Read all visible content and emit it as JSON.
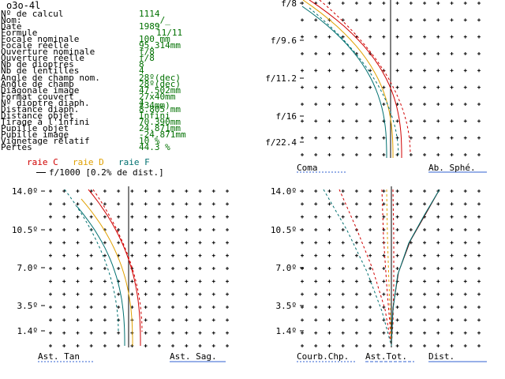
{
  "title": "o3o-4l",
  "info": [
    {
      "label": "Nº de calcul",
      "value": "1114"
    },
    {
      "label": "Nom:",
      "value": "_/_"
    },
    {
      "label": "Date",
      "value": "1989"
    },
    {
      "label": "Formule",
      "value": "11/11"
    },
    {
      "label": "Focale nominale",
      "value": "100      mm"
    },
    {
      "label": "Focale réelle",
      "value": "95.314mm"
    },
    {
      "label": "Ouverture nominale",
      "value": "f/8"
    },
    {
      "label": "Ouverture réelle",
      "value": "f/8"
    },
    {
      "label": "Nb de dioptres",
      "value": "8"
    },
    {
      "label": "Nb de lentilles",
      "value": "4"
    },
    {
      "label": "Angle de champ nom.",
      "value": "28º(dec)"
    },
    {
      "label": "Angle de champ",
      "value": "28º(dec)"
    },
    {
      "label": "Diagonale image",
      "value": "47.502mm"
    },
    {
      "label": "Format couvert",
      "value": "27x40mm (34mm)"
    },
    {
      "label": "Nº dioptre diaph.",
      "value": "4"
    },
    {
      "label": "Distance diaph.",
      "value": "8.805 mm"
    },
    {
      "label": "Distance objet",
      "value": "Infini"
    },
    {
      "label": "Tirage à l'infini",
      "value": "70.390mm"
    },
    {
      "label": "Pupille objet",
      "value": "24.871mm"
    },
    {
      "label": "Pupille image",
      "value": "-24.871mm"
    },
    {
      "label": "Vignetage relatif",
      "value": "10 %"
    },
    {
      "label": "Pertes",
      "value": "44.3 %"
    }
  ],
  "legend": {
    "raie_c": "raie C",
    "raie_d": "raie D",
    "raie_f": "raie F",
    "scale": "f/1000 [0.2% de dist.]"
  },
  "colors": {
    "raie_c": "#d00000",
    "raie_d": "#e0a000",
    "raie_f": "#007070",
    "value_text": "#007000",
    "underline": "#3060d0"
  },
  "plots": {
    "top_right": {
      "y_ticks": [
        "f/8",
        "f/9.6",
        "f/11.2",
        "f/16",
        "f/22.4"
      ],
      "labels": [
        "Coma",
        "Ab. Sphé."
      ]
    },
    "bottom_left": {
      "y_ticks": [
        "14.0º",
        "10.5º",
        "7.0º",
        "3.5º",
        "1.4º"
      ],
      "labels": [
        "Ast. Tan",
        "Ast. Sag."
      ]
    },
    "bottom_right": {
      "y_ticks": [
        "14.0º",
        "10.5º",
        "7.0º",
        "3.5º",
        "1.4º"
      ],
      "labels": [
        "Courb.Chp.",
        "Ast.Tot.",
        "Dist."
      ]
    }
  },
  "chart_data": [
    {
      "type": "line",
      "title": "",
      "y_ticks": [
        "f/8",
        "f/9.6",
        "f/11.2",
        "f/16",
        "f/22.4"
      ],
      "x_labels": [
        "Coma",
        "Ab. Sphé."
      ],
      "series": [
        {
          "name": "raie C",
          "color": "#d00000"
        },
        {
          "name": "raie D",
          "color": "#e0a000"
        },
        {
          "name": "raie F",
          "color": "#007070"
        }
      ]
    },
    {
      "type": "line",
      "title": "",
      "y_ticks": [
        "14.0º",
        "10.5º",
        "7.0º",
        "3.5º",
        "1.4º"
      ],
      "x_labels": [
        "Ast. Tan",
        "Ast. Sag."
      ],
      "series": [
        {
          "name": "raie C",
          "color": "#d00000"
        },
        {
          "name": "raie D",
          "color": "#e0a000"
        },
        {
          "name": "raie F",
          "color": "#007070"
        }
      ]
    },
    {
      "type": "line",
      "title": "",
      "y_ticks": [
        "14.0º",
        "10.5º",
        "7.0º",
        "3.5º",
        "1.4º"
      ],
      "x_labels": [
        "Courb.Chp.",
        "Ast.Tot.",
        "Dist."
      ],
      "series": [
        {
          "name": "raie C",
          "color": "#d00000"
        },
        {
          "name": "raie D",
          "color": "#e0a000"
        },
        {
          "name": "raie F",
          "color": "#007070"
        }
      ]
    }
  ]
}
